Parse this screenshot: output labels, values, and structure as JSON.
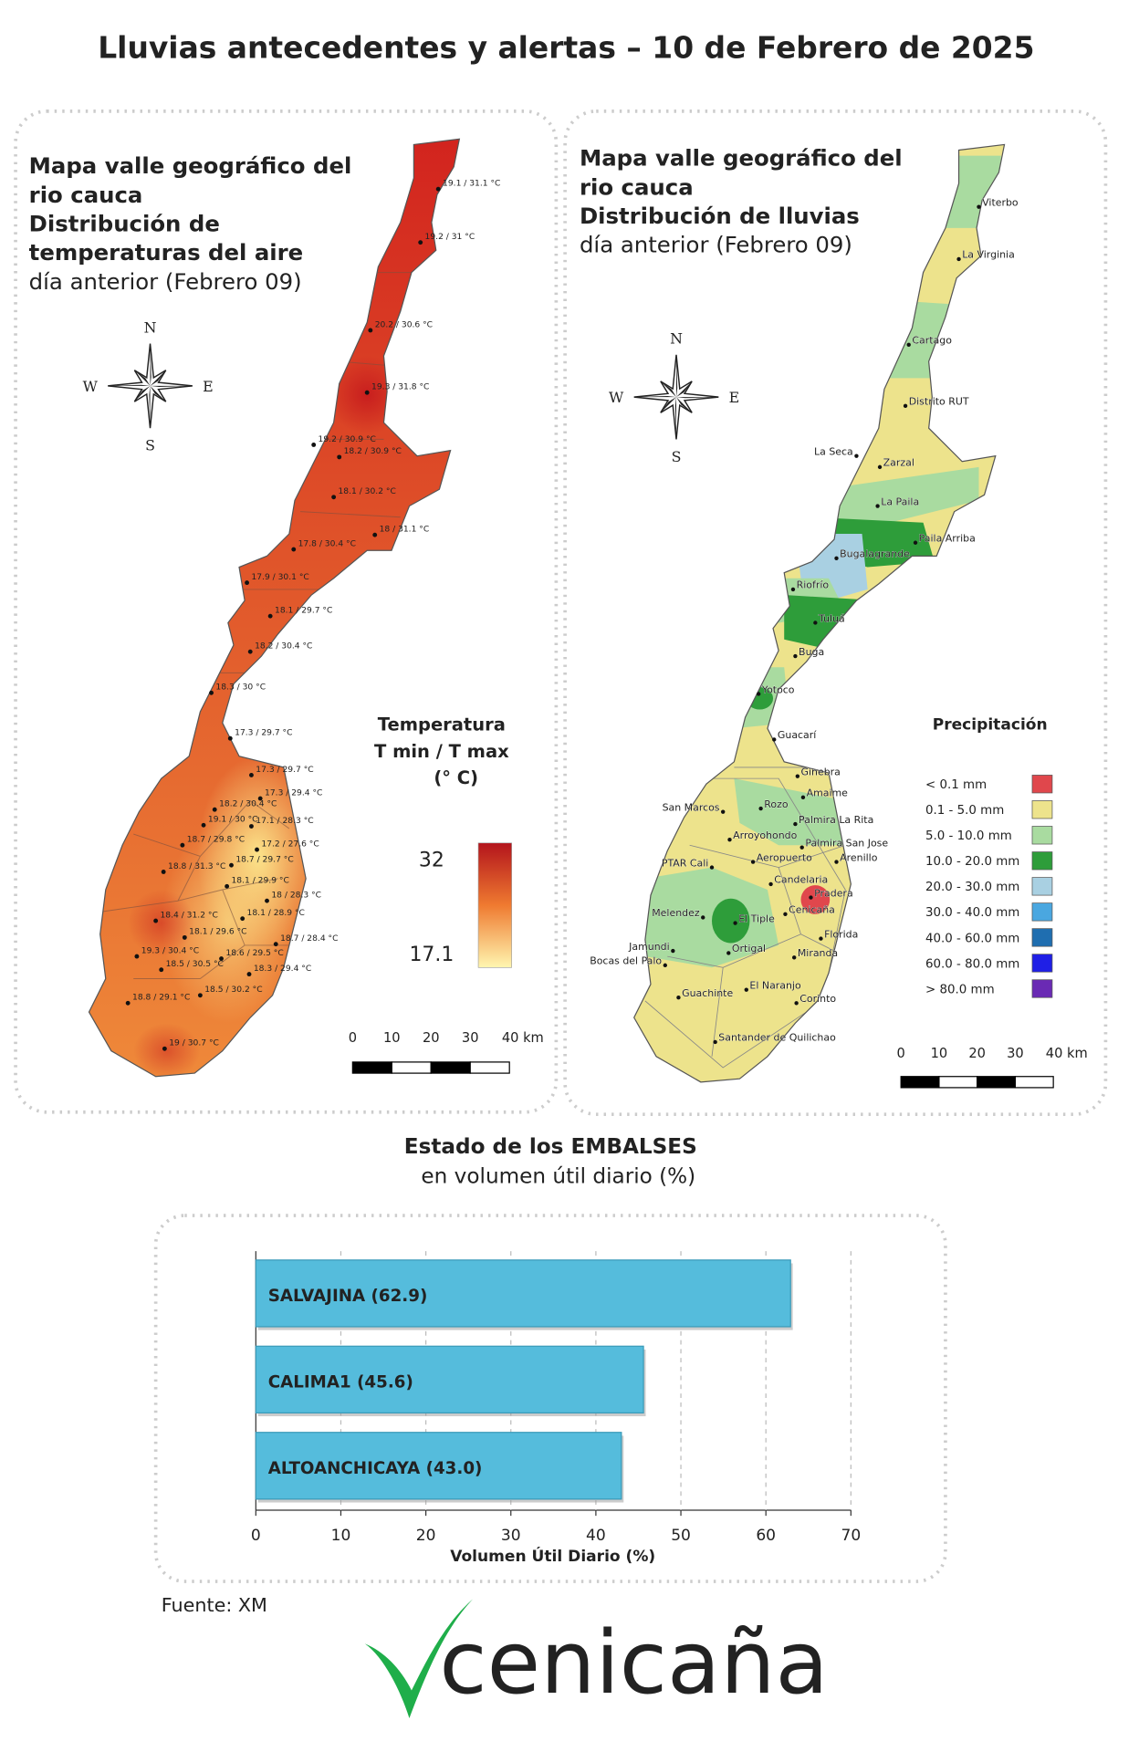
{
  "title": "Lluvias antecedentes y alertas – 10 de Febrero de 2025",
  "temperature_map": {
    "title_lines": [
      "Mapa valle geográfico del",
      "rio cauca",
      "Distribución de",
      "temperaturas del aire"
    ],
    "date_note": "día anterior (Febrero 09)",
    "compass": {
      "n": "N",
      "s": "S",
      "w": "W",
      "e": "E"
    },
    "stations": [
      "19.1 / 31.1 °C",
      "19.2 / 31 °C",
      "20.2 / 30.6 °C",
      "19.3 / 31.8 °C",
      "19.2 / 30.9 °C",
      "18.2 / 30.9 °C",
      "18.1 / 30.2 °C",
      "18 / 31.1 °C",
      "17.8 / 30.4 °C",
      "17.9 / 30.1 °C",
      "18.1 / 29.7 °C",
      "18.2 / 30.4 °C",
      "18.3 / 30 °C",
      "17.3 / 29.7 °C",
      "17.3 / 29.7 °C",
      "17.3 / 29.4 °C",
      "18.2 / 30.4 °C",
      "19.1 / 30 °C",
      "17.1 / 28.3 °C",
      "18.7 / 29.8 °C",
      "17.2 / 27.6 °C",
      "18.7 / 29.7 °C",
      "18.8 / 31.3 °C",
      "18.1 / 29.9 °C",
      "18 / 28.3 °C",
      "18.1 / 28.9 °C",
      "18.4 / 31.2 °C",
      "18.1 / 29.6 °C",
      "18.7 / 28.4 °C",
      "19.3 / 30.4 °C",
      "18.6 / 29.5 °C",
      "18.5 / 30.5 °C",
      "18.3 / 29.4 °C",
      "18.5 / 30.2 °C",
      "18.8 / 29.1 °C",
      "19 / 30.7 °C"
    ],
    "legend": {
      "title_lines": [
        "Temperatura",
        "T min / T max",
        "(° C)"
      ],
      "max": 32,
      "min": 17.1,
      "max_color": "#b3141c",
      "min_color": "#fff6b0"
    },
    "scale_ticks": [
      0,
      10,
      20,
      30,
      {
        "value": 40,
        "label": "40 km"
      }
    ]
  },
  "rainfall_map": {
    "title_lines": [
      "Mapa valle geográfico del",
      "rio cauca",
      "Distribución de lluvias"
    ],
    "date_note": "día anterior (Febrero 09)",
    "compass": {
      "n": "N",
      "s": "S",
      "w": "W",
      "e": "E"
    },
    "towns": [
      "Viterbo",
      "La Virginia",
      "Cartago",
      "Distrito RUT",
      "La Seca",
      "Zarzal",
      "La Paila",
      "Paila Arriba",
      "Bugalagrande",
      "Riofrío",
      "Tuluá",
      "Buga",
      "Yotoco",
      "Guacarí",
      "Ginebra",
      "Amaime",
      "San Marcos",
      "Rozo",
      "Palmira La Rita",
      "Arroyohondo",
      "Palmira San Jose",
      "Aeropuerto",
      "Arenillo",
      "PTAR Cali",
      "Candelaria",
      "Pradera",
      "Cenicaña",
      "Melendez",
      "El Tiple",
      "Florida",
      "Jamundi",
      "Bocas del Palo",
      "Ortigal",
      "Miranda",
      "Guachinte",
      "El Naranjo",
      "Corinto",
      "Santander de Quilichao"
    ],
    "legend": {
      "title": "Precipitación",
      "classes": [
        {
          "label": "< 0.1 mm",
          "color": "#e0474c"
        },
        {
          "label": "0.1 - 5.0 mm",
          "color": "#ede38c"
        },
        {
          "label": "5.0 - 10.0 mm",
          "color": "#a9dba0"
        },
        {
          "label": "10.0 - 20.0 mm",
          "color": "#2e9d3a"
        },
        {
          "label": "20.0 - 30.0 mm",
          "color": "#a9d0e2"
        },
        {
          "label": "30.0 - 40.0 mm",
          "color": "#4aa7e0"
        },
        {
          "label": "40.0 - 60.0 mm",
          "color": "#1f6eb0"
        },
        {
          "label": "60.0 - 80.0 mm",
          "color": "#1f1fe6"
        },
        {
          "label": "> 80.0 mm",
          "color": "#6a2ab4"
        }
      ]
    },
    "scale_ticks": [
      0,
      10,
      20,
      30,
      {
        "value": 40,
        "label": "40 km"
      }
    ]
  },
  "chart_data": {
    "type": "bar",
    "orientation": "horizontal",
    "title": "Estado de los EMBALSES",
    "subtitle": "en volumen útil diario (%)",
    "categories": [
      "SALVAJINA (62.9)",
      "CALIMA1 (45.6)",
      "ALTOANCHICAYA (43.0)"
    ],
    "values": [
      62.9,
      45.6,
      43.0
    ],
    "color": "#55bcdc",
    "xlim": [
      0,
      70
    ],
    "xticks": [
      0,
      10,
      20,
      30,
      40,
      50,
      60,
      70
    ],
    "xlabel": "Volumen Útil Diario (%)",
    "grid": true
  },
  "source": "Fuente: XM",
  "logo": "cenicaña"
}
